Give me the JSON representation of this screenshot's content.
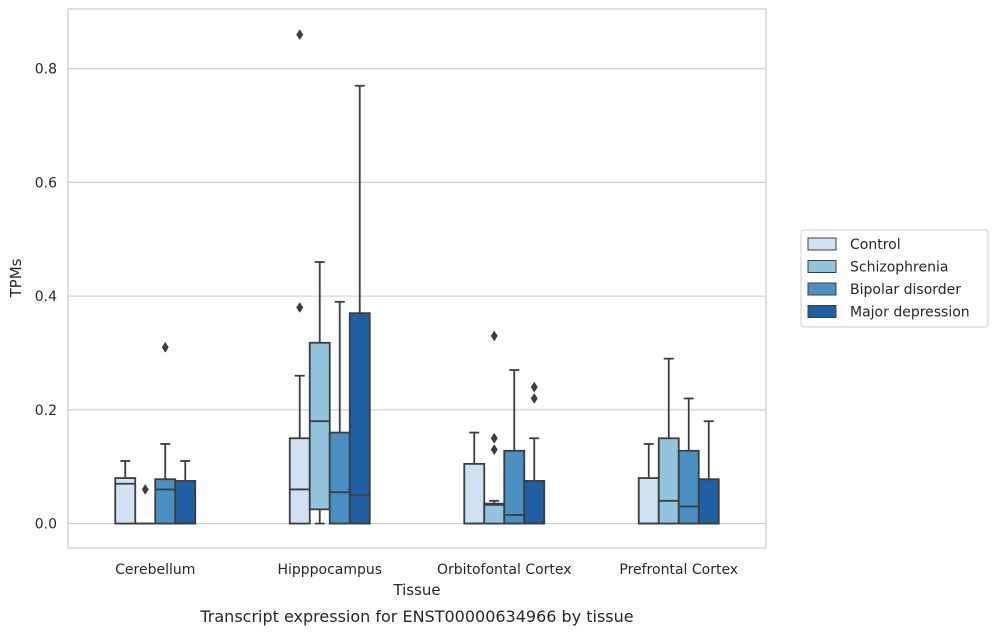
{
  "chart_data": {
    "type": "boxplot",
    "title": "Transcript expression for ENST00000634966 by tissue",
    "xlabel": "Tissue",
    "ylabel": "TPMs",
    "ylim": [
      -0.043,
      0.905
    ],
    "yticks": [
      0.0,
      0.2,
      0.4,
      0.6,
      0.8
    ],
    "ytick_labels": [
      "0.0",
      "0.2",
      "0.4",
      "0.6",
      "0.8"
    ],
    "grid": "horizontal",
    "legend_position": "right",
    "categories": [
      "Cerebellum",
      "Hipppocampus",
      "Orbitofontal Cortex",
      "Prefrontal Cortex"
    ],
    "series": [
      {
        "name": "Control",
        "color": "#cfe1f2",
        "boxes": [
          {
            "min": 0.0,
            "q1": 0.0,
            "median": 0.07,
            "q3": 0.08,
            "max": 0.11,
            "outliers": []
          },
          {
            "min": 0.0,
            "q1": 0.0,
            "median": 0.06,
            "q3": 0.15,
            "max": 0.26,
            "outliers": [
              0.38,
              0.86
            ]
          },
          {
            "min": 0.0,
            "q1": 0.0,
            "median": 0.0,
            "q3": 0.105,
            "max": 0.16,
            "outliers": []
          },
          {
            "min": 0.0,
            "q1": 0.0,
            "median": 0.0,
            "q3": 0.08,
            "max": 0.14,
            "outliers": []
          }
        ]
      },
      {
        "name": "Schizophrenia",
        "color": "#93c4de",
        "boxes": [
          {
            "min": 0.0,
            "q1": 0.0,
            "median": 0.0,
            "q3": 0.0,
            "max": 0.0,
            "outliers": [
              0.06
            ]
          },
          {
            "min": 0.0,
            "q1": 0.025,
            "median": 0.18,
            "q3": 0.318,
            "max": 0.46,
            "outliers": []
          },
          {
            "min": 0.0,
            "q1": 0.0,
            "median": 0.033,
            "q3": 0.035,
            "max": 0.04,
            "outliers": [
              0.13,
              0.15,
              0.33
            ]
          },
          {
            "min": 0.0,
            "q1": 0.0,
            "median": 0.04,
            "q3": 0.15,
            "max": 0.29,
            "outliers": []
          }
        ]
      },
      {
        "name": "Bipolar disorder",
        "color": "#4a90c2",
        "boxes": [
          {
            "min": 0.0,
            "q1": 0.0,
            "median": 0.06,
            "q3": 0.078,
            "max": 0.14,
            "outliers": [
              0.31
            ]
          },
          {
            "min": 0.0,
            "q1": 0.0,
            "median": 0.055,
            "q3": 0.16,
            "max": 0.39,
            "outliers": []
          },
          {
            "min": 0.0,
            "q1": 0.0,
            "median": 0.015,
            "q3": 0.128,
            "max": 0.27,
            "outliers": []
          },
          {
            "min": 0.0,
            "q1": 0.0,
            "median": 0.03,
            "q3": 0.128,
            "max": 0.22,
            "outliers": []
          }
        ]
      },
      {
        "name": "Major depression",
        "color": "#1f5fa3",
        "boxes": [
          {
            "min": 0.0,
            "q1": 0.0,
            "median": 0.0,
            "q3": 0.075,
            "max": 0.11,
            "outliers": []
          },
          {
            "min": 0.0,
            "q1": 0.0,
            "median": 0.05,
            "q3": 0.37,
            "max": 0.77,
            "outliers": []
          },
          {
            "min": 0.0,
            "q1": 0.0,
            "median": 0.0,
            "q3": 0.075,
            "max": 0.15,
            "outliers": [
              0.22,
              0.24
            ]
          },
          {
            "min": 0.0,
            "q1": 0.0,
            "median": 0.0,
            "q3": 0.078,
            "max": 0.18,
            "outliers": []
          }
        ]
      }
    ]
  }
}
